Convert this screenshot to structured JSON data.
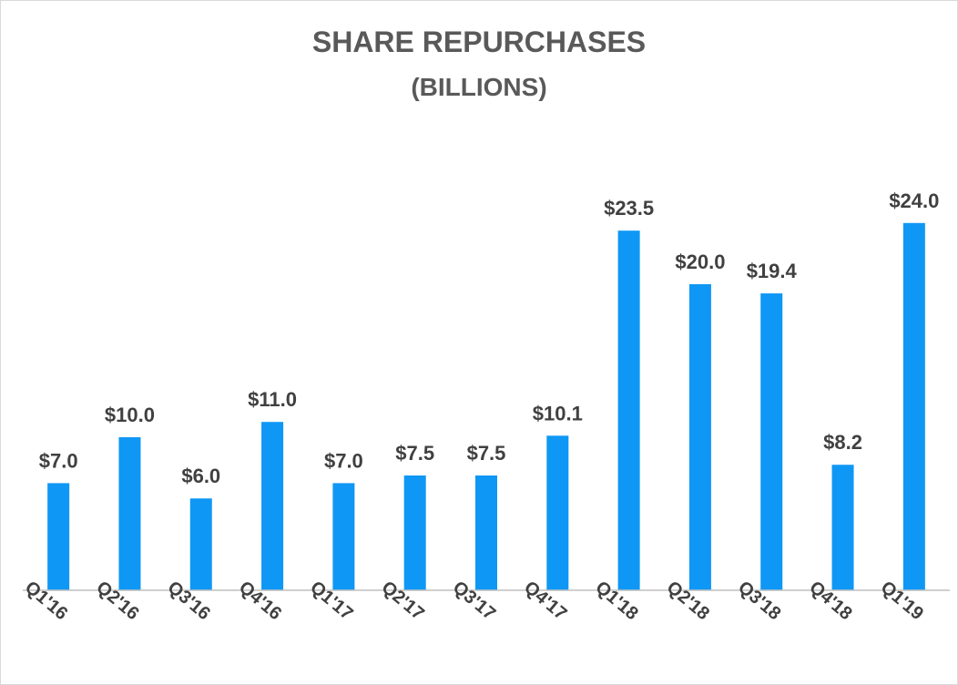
{
  "chart_data": {
    "type": "bar",
    "title": "SHARE REPURCHASES",
    "subtitle": "(BILLIONS)",
    "categories": [
      "Q1'16",
      "Q2'16",
      "Q3'16",
      "Q4'16",
      "Q1'17",
      "Q2'17",
      "Q3'17",
      "Q4'17",
      "Q1'18",
      "Q2'18",
      "Q3'18",
      "Q4'18",
      "Q1'19"
    ],
    "values": [
      7.0,
      10.0,
      6.0,
      11.0,
      7.0,
      7.5,
      7.5,
      10.1,
      23.5,
      20.0,
      19.4,
      8.2,
      24.0
    ],
    "data_labels": [
      "$7.0",
      "$10.0",
      "$6.0",
      "$11.0",
      "$7.0",
      "$7.5",
      "$7.5",
      "$10.1",
      "$23.5",
      "$20.0",
      "$19.4",
      "$8.2",
      "$24.0"
    ],
    "xlabel": "",
    "ylabel": "",
    "ylim": [
      0,
      26
    ],
    "grid": false,
    "legend": "none",
    "bar_color": "#0f97f5",
    "axis_color": "#bfbfbf"
  }
}
